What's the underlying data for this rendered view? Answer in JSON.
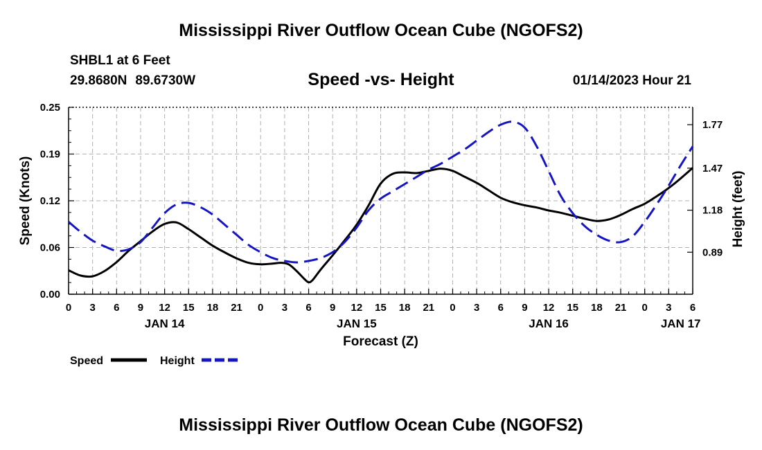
{
  "title": "Mississippi River Outflow Ocean Cube (NGOFS2)",
  "footer_title": "Mississippi River Outflow Ocean Cube (NGOFS2)",
  "station": "SHBL1 at 6 Feet",
  "lat": "29.8680N",
  "lon": "89.6730W",
  "datetime": "01/14/2023 Hour 21",
  "chart_data": {
    "type": "line",
    "title": "Speed -vs- Height",
    "xlabel": "Forecast (Z)",
    "ylabel_left": "Speed (Knots)",
    "ylabel_right": "Height (feet)",
    "x_unit": "forecast hours from 00Z JAN 14",
    "xlim": [
      0,
      78
    ],
    "x_tick_labels": [
      "0",
      "3",
      "6",
      "9",
      "12",
      "15",
      "18",
      "21",
      "0",
      "3",
      "6",
      "9",
      "12",
      "15",
      "18",
      "21",
      "0",
      "3",
      "6",
      "9",
      "12",
      "15",
      "18",
      "21",
      "0",
      "3",
      "6"
    ],
    "date_labels": [
      {
        "x": 12,
        "label": "JAN 14"
      },
      {
        "x": 36,
        "label": "JAN 15"
      },
      {
        "x": 60,
        "label": "JAN 16"
      },
      {
        "x": 76.5,
        "label": "JAN 17"
      }
    ],
    "ylim_left": [
      0,
      0.25
    ],
    "y_ticks_left": [
      "0.00",
      "0.06",
      "0.12",
      "0.19",
      "0.25"
    ],
    "ylim_right": [
      0.6,
      1.89
    ],
    "y_ticks_right": [
      {
        "value": 0.89,
        "label": "0.89"
      },
      {
        "value": 1.18,
        "label": "1.18"
      },
      {
        "value": 1.47,
        "label": "1.47"
      },
      {
        "value": 1.77,
        "label": "1.77"
      }
    ],
    "grid": true,
    "legend": [
      "Speed",
      "Height"
    ],
    "series": [
      {
        "name": "Speed",
        "axis": "left",
        "color": "#000000",
        "style": "solid",
        "x": [
          0,
          1.5,
          3,
          4.5,
          6,
          7.5,
          9,
          10.5,
          12,
          13.5,
          15,
          16.5,
          18,
          19.5,
          21,
          22.5,
          24,
          25.5,
          26.5,
          27.5,
          28.5,
          29.5,
          30,
          30.5,
          31.5,
          33,
          34.5,
          36,
          37.5,
          39,
          40.5,
          42,
          43.5,
          45,
          46.5,
          48,
          49.5,
          51,
          52.5,
          54,
          55.5,
          57,
          58.5,
          60,
          61.5,
          63,
          64.5,
          66,
          67.5,
          69,
          70.5,
          72,
          73.5,
          75,
          76.5,
          78
        ],
        "values": [
          0.032,
          0.025,
          0.024,
          0.031,
          0.043,
          0.058,
          0.071,
          0.084,
          0.094,
          0.096,
          0.087,
          0.076,
          0.065,
          0.056,
          0.048,
          0.042,
          0.04,
          0.041,
          0.042,
          0.04,
          0.031,
          0.02,
          0.016,
          0.019,
          0.033,
          0.052,
          0.072,
          0.093,
          0.119,
          0.148,
          0.161,
          0.163,
          0.162,
          0.165,
          0.168,
          0.165,
          0.157,
          0.149,
          0.139,
          0.129,
          0.123,
          0.119,
          0.116,
          0.112,
          0.109,
          0.105,
          0.101,
          0.098,
          0.1,
          0.106,
          0.114,
          0.121,
          0.131,
          0.142,
          0.155,
          0.169
        ]
      },
      {
        "name": "Height",
        "axis": "right",
        "color": "#1515c4",
        "style": "dashed",
        "x": [
          0,
          1.5,
          3,
          4.5,
          6,
          7.5,
          9,
          10.5,
          12,
          13.5,
          15,
          16.5,
          18,
          19.5,
          21,
          22.5,
          24,
          25.5,
          27,
          28.5,
          30,
          31.5,
          33,
          34.5,
          36,
          37.5,
          39,
          40.5,
          42,
          43.5,
          45,
          46.5,
          48,
          49.5,
          51,
          52.5,
          54,
          55.5,
          57,
          58.5,
          60,
          61.5,
          63,
          64.5,
          66,
          67.5,
          69,
          70.5,
          72,
          73.5,
          75,
          76.5,
          78
        ],
        "values": [
          1.1,
          1.03,
          0.97,
          0.93,
          0.9,
          0.91,
          0.96,
          1.06,
          1.16,
          1.22,
          1.23,
          1.2,
          1.15,
          1.08,
          1.01,
          0.94,
          0.89,
          0.85,
          0.83,
          0.82,
          0.83,
          0.85,
          0.89,
          0.96,
          1.06,
          1.18,
          1.26,
          1.31,
          1.36,
          1.41,
          1.46,
          1.5,
          1.55,
          1.6,
          1.66,
          1.72,
          1.77,
          1.79,
          1.75,
          1.62,
          1.45,
          1.28,
          1.16,
          1.07,
          1.01,
          0.97,
          0.96,
          1.0,
          1.1,
          1.22,
          1.35,
          1.49,
          1.62
        ]
      }
    ]
  }
}
